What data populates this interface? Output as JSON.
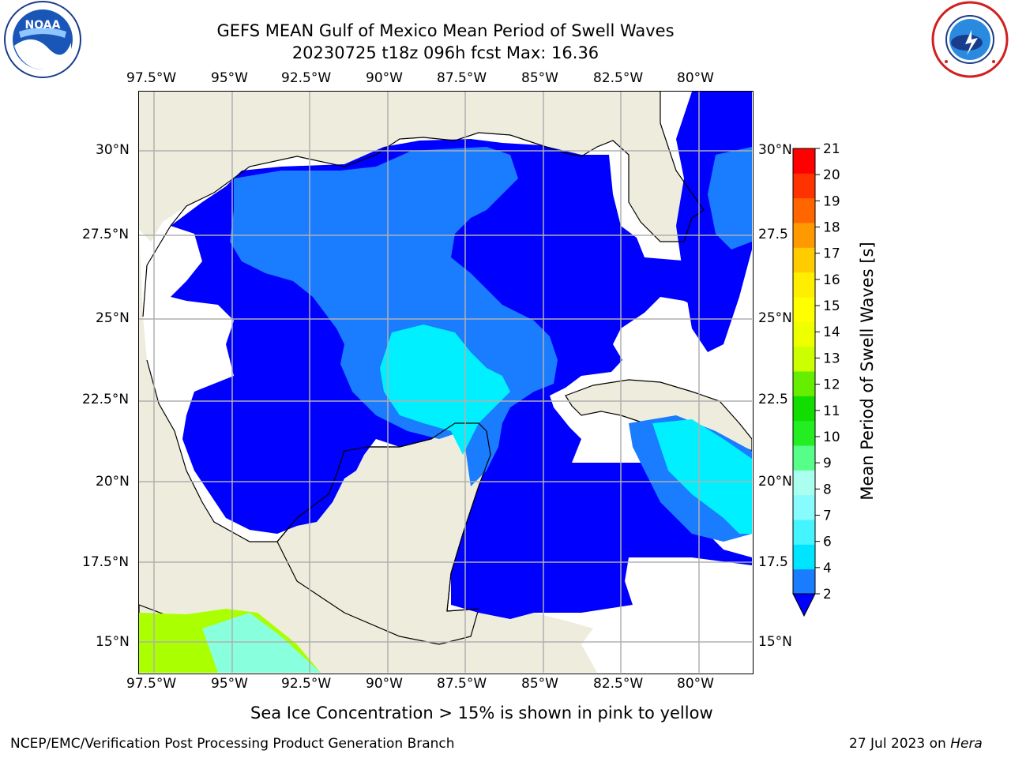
{
  "title_line1": "GEFS MEAN Gulf of Mexico Mean Period of Swell Waves",
  "title_line2": "20230725 t18z 096h fcst   Max: 16.36",
  "lon_ticks": [
    "97.5°W",
    "95°W",
    "92.5°W",
    "90°W",
    "87.5°W",
    "85°W",
    "82.5°W",
    "80°W"
  ],
  "lat_ticks_left": [
    "30°N",
    "27.5°N",
    "25°N",
    "22.5°N",
    "20°N",
    "17.5°N",
    "15°N"
  ],
  "lat_ticks_right": [
    "30°N",
    "27.5",
    "25°N",
    "22.5",
    "20°N",
    "17.5",
    "15°N"
  ],
  "colorbar": {
    "label": "Mean Period of Swell Waves [s]",
    "ticks": [
      "2",
      "4",
      "6",
      "7",
      "8",
      "9",
      "10",
      "11",
      "12",
      "13",
      "14",
      "15",
      "16",
      "17",
      "18",
      "19",
      "20",
      "21"
    ],
    "colors": [
      "#1a7cff",
      "#00e5ff",
      "#44f5ff",
      "#88fbff",
      "#aaffee",
      "#55ff88",
      "#22ee22",
      "#11dd00",
      "#66ee00",
      "#ccff00",
      "#eeff00",
      "#ffff00",
      "#ffee00",
      "#ffcc00",
      "#ff9900",
      "#ff6600",
      "#ff3300",
      "#ff0000"
    ],
    "extend_color": "#0000ff"
  },
  "subtitle": "Sea Ice Concentration > 15% is shown in pink to yellow",
  "footer_left": "NCEP/EMC/Verification Post Processing Product Generation Branch",
  "footer_date": "27 Jul 2023 on ",
  "footer_host": "Hera",
  "logo_left_text": "NOAA",
  "colors": {
    "land": "#eeecdc",
    "grid": "#b0b0b0",
    "low_period": "#0000ff",
    "mid_period": "#1a7cff",
    "high_period": "#00f0ff"
  }
}
